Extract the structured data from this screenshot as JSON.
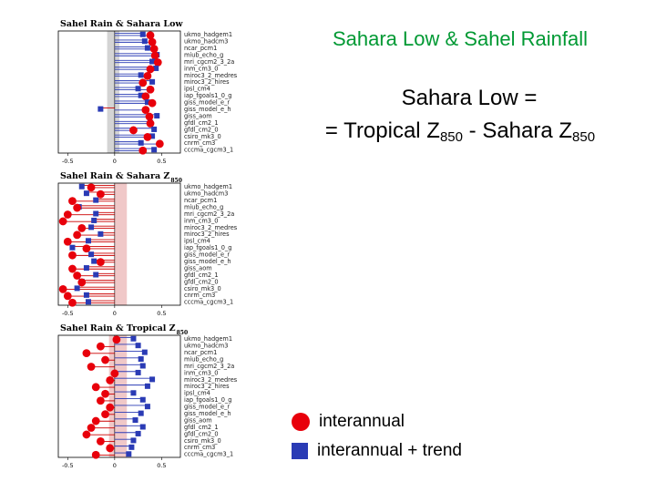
{
  "heading": {
    "title": "Sahara Low & Sahel Rainfall",
    "definition_line1": "Sahara Low =",
    "definition_line2_prefix": "= Tropical Z",
    "definition_line2_sub1": "850",
    "definition_line2_mid": " - Sahara Z",
    "definition_line2_sub2": "850"
  },
  "legend": {
    "interannual": "interannual",
    "interannual_trend": "interannual + trend",
    "colors": {
      "interannual": "#e8000b",
      "interannual_trend": "#2a3bb5"
    }
  },
  "colors": {
    "shade_gray": "#d4d4d4",
    "shade_pink": "#f0c8c8",
    "stem_positive": "#2a3bb5",
    "stem_negative": "#cc0000"
  },
  "chart_data": [
    {
      "type": "scatter",
      "title": "Sahel Rain & Sahara Low",
      "title_sub": "",
      "xlim": [
        -0.6,
        0.7
      ],
      "xticks": [
        "-0.5",
        "0",
        "0.5"
      ],
      "shade": {
        "from": -0.08,
        "to": 0.05,
        "color": "gray"
      },
      "models": [
        "ukmo_hadgem1",
        "ukmo_hadcm3",
        "ncar_pcm1",
        "miub_echo_g",
        "mri_cgcm2_3_2a",
        "inm_cm3_0",
        "miroc3_2_medres",
        "miroc3_2_hires",
        "ipsl_cm4",
        "iap_fgoals1_0_g",
        "giss_model_e_r",
        "giss_model_e_h",
        "giss_aom",
        "gfdl_cm2_1",
        "gfdl_cm2_0",
        "csiro_mk3_0",
        "cnrm_cm3",
        "cccma_cgcm3_1"
      ],
      "series": [
        {
          "name": "interannual",
          "values": [
            0.38,
            0.4,
            0.42,
            0.43,
            0.46,
            0.38,
            0.35,
            0.3,
            0.38,
            0.33,
            0.4,
            0.33,
            0.37,
            0.38,
            0.2,
            0.35,
            0.48,
            0.3
          ]
        },
        {
          "name": "interannual + trend",
          "values": [
            0.3,
            0.32,
            0.35,
            0.45,
            0.4,
            0.44,
            0.28,
            0.4,
            0.25,
            0.28,
            0.35,
            -0.15,
            0.45,
            0.38,
            0.42,
            0.4,
            0.28,
            0.42
          ]
        }
      ]
    },
    {
      "type": "scatter",
      "title": "Sahel Rain & Sahara Z",
      "title_sub": "850",
      "xlim": [
        -0.6,
        0.7
      ],
      "xticks": [
        "-0.5",
        "0",
        "0.5"
      ],
      "shade": {
        "from": 0.0,
        "to": 0.13,
        "color": "pink"
      },
      "models": [
        "ukmo_hadgem1",
        "ukmo_hadcm3",
        "ncar_pcm1",
        "miub_echo_g",
        "mri_cgcm2_3_2a",
        "inm_cm3_0",
        "miroc3_2_medres",
        "miroc3_2_hires",
        "ipsl_cm4",
        "iap_fgoals1_0_g",
        "giss_model_e_r",
        "giss_model_e_h",
        "giss_aom",
        "gfdl_cm2_1",
        "gfdl_cm2_0",
        "csiro_mk3_0",
        "cnrm_cm3",
        "cccma_cgcm3_1"
      ],
      "series": [
        {
          "name": "interannual",
          "values": [
            -0.25,
            -0.15,
            -0.45,
            -0.4,
            -0.5,
            -0.55,
            -0.35,
            -0.4,
            -0.5,
            -0.3,
            -0.45,
            -0.15,
            -0.45,
            -0.4,
            -0.35,
            -0.55,
            -0.5,
            -0.45
          ]
        },
        {
          "name": "interannual + trend",
          "values": [
            -0.35,
            -0.3,
            -0.2,
            -0.38,
            -0.2,
            -0.22,
            -0.25,
            -0.15,
            -0.28,
            -0.45,
            -0.25,
            -0.22,
            -0.3,
            -0.2,
            -0.35,
            -0.4,
            -0.3,
            -0.28
          ]
        }
      ]
    },
    {
      "type": "scatter",
      "title": "Sahel Rain & Tropical Z",
      "title_sub": "850",
      "xlim": [
        -0.6,
        0.7
      ],
      "xticks": [
        "-0.5",
        "0",
        "0.5"
      ],
      "shade": {
        "from": -0.06,
        "to": 0.13,
        "color": "pink"
      },
      "models": [
        "ukmo_hadgem1",
        "ukmo_hadcm3",
        "ncar_pcm1",
        "miub_echo_g",
        "mri_cgcm2_3_2a",
        "inm_cm3_0",
        "miroc3_2_medres",
        "miroc3_2_hires",
        "ipsl_cm4",
        "iap_fgoals1_0_g",
        "giss_model_e_r",
        "giss_model_e_h",
        "giss_aom",
        "gfdl_cm2_1",
        "gfdl_cm2_0",
        "csiro_mk3_0",
        "cnrm_cm3",
        "cccma_cgcm3_1"
      ],
      "series": [
        {
          "name": "interannual",
          "values": [
            0.02,
            -0.15,
            -0.3,
            -0.1,
            -0.25,
            0.0,
            -0.05,
            -0.2,
            -0.1,
            -0.15,
            -0.05,
            -0.1,
            -0.2,
            -0.25,
            -0.3,
            -0.15,
            -0.05,
            -0.2
          ]
        },
        {
          "name": "interannual + trend",
          "values": [
            0.2,
            0.25,
            0.32,
            0.28,
            0.3,
            0.25,
            0.4,
            0.35,
            0.2,
            0.3,
            0.35,
            0.28,
            0.22,
            0.3,
            0.25,
            0.2,
            0.18,
            0.15
          ]
        }
      ]
    }
  ]
}
